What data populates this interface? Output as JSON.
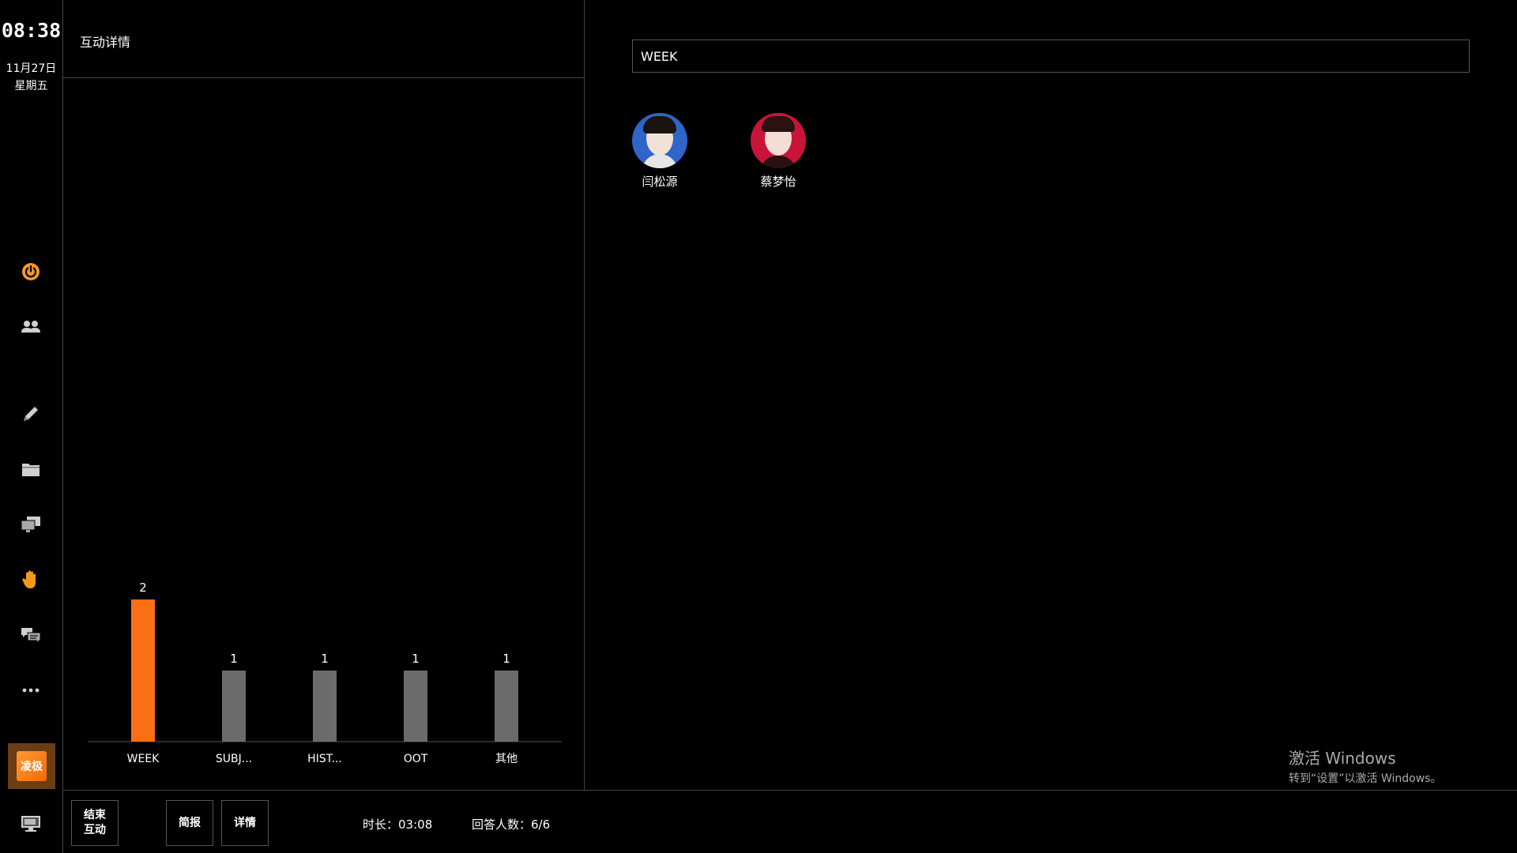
{
  "sidebar": {
    "time": "08:38",
    "date": "11月27日",
    "weekday": "星期五",
    "brand_label": "凌极",
    "icons": [
      "power-icon",
      "users-icon",
      "pencil-icon",
      "folder-icon",
      "screens-icon",
      "hand-icon",
      "chat-icon",
      "more-icon",
      "monitor-icon"
    ],
    "accent_color": "#ff7a1a"
  },
  "left_panel": {
    "title": "互动详情"
  },
  "chart_data": {
    "type": "bar",
    "categories": [
      "WEEK",
      "SUBJ...",
      "HIST...",
      "OOT",
      "其他"
    ],
    "values": [
      2,
      1,
      1,
      1,
      1
    ],
    "colors": [
      "#fb6f14",
      "#6b6b6b",
      "#6b6b6b",
      "#6b6b6b",
      "#6b6b6b"
    ],
    "ylim": [
      0,
      2
    ],
    "grid": false,
    "data_labels": true
  },
  "right_panel": {
    "selected_answer": "WEEK",
    "students": [
      {
        "name": "闫松源",
        "avatar_color": "#2f64c9"
      },
      {
        "name": "蔡梦怡",
        "avatar_color": "#c9143a"
      }
    ]
  },
  "bottom_bar": {
    "end_button_line1": "结束",
    "end_button_line2": "互动",
    "brief_button": "简报",
    "detail_button": "详情",
    "duration_label": "时长：",
    "duration_value": "03:08",
    "answer_count_label": "回答人数：",
    "answer_count_value": "6/6"
  },
  "watermark": {
    "title": "激活 Windows",
    "subtitle": "转到“设置”以激活 Windows。"
  }
}
